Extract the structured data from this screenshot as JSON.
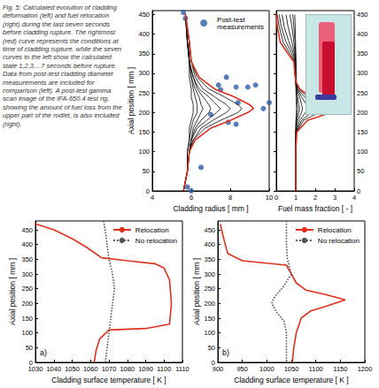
{
  "caption": "Fig. 5: Calculated evolution of cladding deformation (left) and fuel relocation (right) during the last seven seconds before cladding rupture. The rightmost (red) curve represents the conditions at time of cladding rupture, while the seven curves to the left show the calculated state 1,2,3,...7 seconds before rupture. Data from post-test cladding diameter measurements are included for comparison (left). A post-test gamma scan image of the IFA-650.4 test rig, showing the amount of fuel loss from the upper part of the rodlet, is also included (right).",
  "chart_data": [
    {
      "type": "line",
      "xlabel": "Cladding radius [ mm ]",
      "ylabel": "Axial position [ mm ]",
      "xlim": [
        4,
        10
      ],
      "ylim": [
        0,
        460
      ],
      "xticks": [
        4,
        6,
        8,
        10
      ],
      "yticks": [
        0,
        50,
        100,
        150,
        200,
        250,
        300,
        350,
        400,
        450
      ],
      "grid": false,
      "legend": "top-right",
      "series": [
        {
          "color": "#000000",
          "x": [
            5.6,
            5.8,
            5.8,
            5.9,
            5.9,
            6.0,
            6.1,
            6.1,
            6.1,
            6.0,
            6.0,
            5.9,
            5.9,
            5.8,
            5.7
          ],
          "y": [
            0,
            50,
            100,
            130,
            160,
            180,
            200,
            210,
            220,
            240,
            260,
            290,
            330,
            380,
            450
          ]
        },
        {
          "color": "#000000",
          "x": [
            5.6,
            5.8,
            5.8,
            5.9,
            6.0,
            6.1,
            6.3,
            6.3,
            6.3,
            6.2,
            6.1,
            6.0,
            5.9,
            5.8,
            5.7
          ],
          "y": [
            0,
            50,
            100,
            130,
            160,
            180,
            200,
            210,
            220,
            240,
            260,
            290,
            330,
            380,
            450
          ]
        },
        {
          "color": "#000000",
          "x": [
            5.6,
            5.8,
            5.9,
            6.0,
            6.1,
            6.3,
            6.5,
            6.6,
            6.5,
            6.4,
            6.2,
            6.0,
            5.9,
            5.8,
            5.7
          ],
          "y": [
            0,
            50,
            100,
            130,
            160,
            180,
            200,
            210,
            220,
            240,
            260,
            290,
            330,
            380,
            450
          ]
        },
        {
          "color": "#000000",
          "x": [
            5.6,
            5.8,
            5.9,
            6.0,
            6.2,
            6.5,
            6.9,
            7.0,
            6.9,
            6.6,
            6.3,
            6.1,
            5.9,
            5.8,
            5.7
          ],
          "y": [
            0,
            50,
            100,
            130,
            160,
            180,
            200,
            210,
            220,
            240,
            260,
            290,
            330,
            380,
            450
          ]
        },
        {
          "color": "#000000",
          "x": [
            5.6,
            5.8,
            5.9,
            6.0,
            6.3,
            6.8,
            7.3,
            7.5,
            7.3,
            6.9,
            6.4,
            6.1,
            5.9,
            5.9,
            5.7
          ],
          "y": [
            0,
            50,
            100,
            130,
            160,
            180,
            200,
            210,
            220,
            240,
            260,
            290,
            330,
            380,
            450
          ]
        },
        {
          "color": "#000000",
          "x": [
            5.6,
            5.8,
            5.9,
            6.1,
            6.5,
            7.1,
            7.8,
            8.0,
            7.8,
            7.2,
            6.6,
            6.2,
            6.0,
            5.9,
            5.7
          ],
          "y": [
            0,
            50,
            100,
            130,
            160,
            180,
            200,
            210,
            220,
            240,
            260,
            290,
            330,
            380,
            450
          ]
        },
        {
          "color": "#000000",
          "x": [
            5.6,
            5.8,
            5.9,
            6.1,
            6.7,
            7.5,
            8.4,
            8.6,
            8.4,
            7.7,
            6.9,
            6.3,
            6.0,
            5.9,
            5.7
          ],
          "y": [
            0,
            50,
            100,
            130,
            160,
            180,
            200,
            210,
            220,
            240,
            260,
            290,
            330,
            380,
            450
          ]
        },
        {
          "color": "#e0301e",
          "x": [
            5.6,
            5.8,
            5.9,
            6.2,
            7.0,
            8.0,
            8.9,
            9.2,
            9.0,
            8.2,
            7.2,
            6.4,
            6.0,
            5.9,
            5.7
          ],
          "y": [
            0,
            50,
            100,
            130,
            160,
            180,
            200,
            210,
            220,
            240,
            260,
            290,
            330,
            380,
            450
          ]
        },
        {
          "name": "Post-test measurements",
          "type": "scatter",
          "marker": "circle",
          "color": "#2a5ca8",
          "x": [
            5.6,
            5.7,
            6.5,
            7.0,
            7.4,
            7.5,
            7.8,
            8.3,
            8.4,
            8.3,
            7.9,
            8.9,
            9.3,
            9.7,
            10.0,
            6.0,
            5.8
          ],
          "y": [
            455,
            440,
            60,
            195,
            270,
            258,
            290,
            170,
            225,
            265,
            175,
            265,
            270,
            210,
            225,
            0,
            10
          ]
        }
      ]
    },
    {
      "type": "line",
      "xlabel": "Fuel mass fraction [ - ]",
      "xlim": [
        0,
        4
      ],
      "ylim": [
        0,
        460
      ],
      "xticks": [
        0,
        1,
        2,
        3,
        4
      ],
      "yticks": [
        0,
        50,
        100,
        150,
        200,
        250,
        300,
        350,
        400,
        450
      ],
      "grid": false,
      "series": [
        {
          "color": "#000000",
          "x": [
            1,
            1,
            1,
            1.01,
            1.03,
            1.04,
            1.03,
            1.02,
            1.01,
            1.0,
            1.0,
            1.0,
            1.0,
            0.99,
            0.97,
            0.95
          ],
          "y": [
            0,
            100,
            150,
            180,
            200,
            210,
            220,
            240,
            260,
            280,
            300,
            330,
            350,
            380,
            420,
            450
          ]
        },
        {
          "color": "#000000",
          "x": [
            1,
            1,
            1,
            1.02,
            1.07,
            1.1,
            1.07,
            1.05,
            1.02,
            1.0,
            1.0,
            1.0,
            0.99,
            0.96,
            0.9,
            0.85
          ],
          "y": [
            0,
            100,
            150,
            180,
            200,
            210,
            220,
            240,
            260,
            280,
            300,
            330,
            350,
            380,
            420,
            450
          ]
        },
        {
          "color": "#000000",
          "x": [
            1,
            1,
            1,
            1.05,
            1.15,
            1.2,
            1.15,
            1.1,
            1.03,
            1.0,
            1.0,
            1.0,
            0.97,
            0.9,
            0.8,
            0.7
          ],
          "y": [
            0,
            100,
            150,
            180,
            200,
            210,
            220,
            240,
            260,
            280,
            300,
            330,
            350,
            380,
            420,
            450
          ]
        },
        {
          "color": "#000000",
          "x": [
            1,
            1,
            1.01,
            1.1,
            1.3,
            1.35,
            1.3,
            1.2,
            1.05,
            1.0,
            1.0,
            0.98,
            0.93,
            0.8,
            0.6,
            0.5
          ],
          "y": [
            0,
            100,
            150,
            180,
            200,
            210,
            220,
            240,
            260,
            280,
            300,
            330,
            350,
            380,
            420,
            450
          ]
        },
        {
          "color": "#000000",
          "x": [
            1,
            1,
            1.02,
            1.2,
            1.5,
            1.6,
            1.55,
            1.3,
            1.08,
            1.0,
            0.98,
            0.96,
            0.88,
            0.65,
            0.4,
            0.3
          ],
          "y": [
            0,
            100,
            150,
            180,
            200,
            210,
            220,
            240,
            260,
            280,
            300,
            330,
            350,
            380,
            420,
            450
          ]
        },
        {
          "color": "#000000",
          "x": [
            1,
            1,
            1.03,
            1.3,
            1.8,
            2.0,
            1.9,
            1.45,
            1.1,
            1.0,
            0.97,
            0.95,
            0.8,
            0.5,
            0.25,
            0.15
          ],
          "y": [
            0,
            100,
            150,
            180,
            200,
            210,
            220,
            240,
            260,
            280,
            300,
            330,
            350,
            380,
            420,
            450
          ]
        },
        {
          "color": "#000000",
          "x": [
            1,
            1,
            1.05,
            1.4,
            2.2,
            2.6,
            2.3,
            1.6,
            1.15,
            1.0,
            0.95,
            0.92,
            0.7,
            0.35,
            0.15,
            0.05
          ],
          "y": [
            0,
            100,
            150,
            180,
            200,
            210,
            220,
            240,
            260,
            280,
            300,
            330,
            350,
            380,
            420,
            450
          ]
        },
        {
          "color": "#e0301e",
          "x": [
            1,
            1,
            1.05,
            1.6,
            2.8,
            3.3,
            2.8,
            1.8,
            1.2,
            1.0,
            0.95,
            0.9,
            0.6,
            0.2,
            0.05,
            0
          ],
          "y": [
            0,
            100,
            150,
            180,
            200,
            210,
            220,
            240,
            260,
            280,
            300,
            330,
            350,
            380,
            420,
            450
          ]
        }
      ]
    },
    {
      "type": "line",
      "label": "a)",
      "xlabel": "Cladding surface temperature [ K ]",
      "ylabel": "Axial position [ mm ]",
      "xlim": [
        1030,
        1110
      ],
      "ylim": [
        0,
        480
      ],
      "xticks": [
        1030,
        1040,
        1050,
        1060,
        1070,
        1080,
        1090,
        1100,
        1110
      ],
      "yticks": [
        0,
        50,
        100,
        150,
        200,
        250,
        300,
        350,
        400,
        450
      ],
      "grid": false,
      "legend": "top-right",
      "series": [
        {
          "name": "Relocation",
          "color": "#e0301e",
          "line_style": "solid",
          "x": [
            1030,
            1040,
            1050,
            1058,
            1066,
            1080,
            1095,
            1100,
            1103,
            1104,
            1103,
            1090,
            1070,
            1065,
            1063,
            1062
          ],
          "y": [
            470,
            450,
            420,
            390,
            355,
            345,
            335,
            320,
            280,
            200,
            130,
            115,
            110,
            80,
            40,
            0
          ]
        },
        {
          "name": "No relocation",
          "color": "#555555",
          "line_style": "dotted",
          "x": [
            1067,
            1068,
            1069,
            1070,
            1072,
            1073,
            1072,
            1071,
            1070,
            1069,
            1068
          ],
          "y": [
            480,
            450,
            400,
            350,
            300,
            250,
            200,
            150,
            100,
            50,
            0
          ]
        }
      ]
    },
    {
      "type": "line",
      "label": "b)",
      "xlabel": "Cladding surface temperature [ K ]",
      "ylabel": "Axial position [ mm ]",
      "xlim": [
        900,
        1200
      ],
      "ylim": [
        0,
        480
      ],
      "xticks": [
        900,
        950,
        1000,
        1050,
        1100,
        1150,
        1200
      ],
      "yticks": [
        0,
        50,
        100,
        150,
        200,
        250,
        300,
        350,
        400,
        450
      ],
      "grid": false,
      "legend": "top-right",
      "series": [
        {
          "name": "Relocation",
          "color": "#e0301e",
          "line_style": "solid",
          "x": [
            905,
            912,
            920,
            950,
            1040,
            1050,
            1060,
            1080,
            1120,
            1160,
            1120,
            1090,
            1070,
            1060,
            1055,
            1052
          ],
          "y": [
            470,
            420,
            370,
            345,
            330,
            300,
            270,
            245,
            230,
            212,
            190,
            175,
            150,
            100,
            50,
            0
          ]
        },
        {
          "name": "No relocation",
          "color": "#555555",
          "line_style": "dotted",
          "x": [
            1040,
            1040,
            1042,
            1050,
            1035,
            1015,
            1010,
            1020,
            1035,
            1040,
            1040
          ],
          "y": [
            480,
            400,
            350,
            300,
            260,
            220,
            200,
            170,
            140,
            100,
            0
          ]
        }
      ]
    }
  ]
}
